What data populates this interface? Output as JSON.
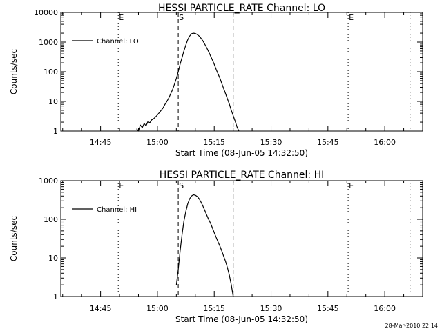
{
  "chart_data": [
    {
      "type": "line",
      "title": "HESSI PARTICLE_RATE Channel: LO",
      "xlabel": "Start Time (08-Jun-05 14:32:50)",
      "ylabel": "Counts/sec",
      "yscale": "log",
      "ylim": [
        1,
        10000
      ],
      "yticks": [
        "1",
        "10",
        "100",
        "1000",
        "10000"
      ],
      "xlim": [
        "14:34:30",
        "16:10:00"
      ],
      "xticks": [
        "14:45",
        "15:00",
        "15:15",
        "15:30",
        "15:45",
        "16:00"
      ],
      "grid": false,
      "legend": {
        "placement": "top-left",
        "entries": [
          "Channel: LO"
        ]
      },
      "markers": [
        {
          "time": "14:49:40",
          "style": "dotted",
          "label": "E"
        },
        {
          "time": "15:05:30",
          "style": "dashed",
          "label": "S"
        },
        {
          "time": "15:20:00",
          "style": "dashed",
          "label": ""
        },
        {
          "time": "15:50:20",
          "style": "dotted",
          "label": "E"
        },
        {
          "time": "16:06:40",
          "style": "dotted",
          "label": ""
        }
      ],
      "series": [
        {
          "name": "Channel: LO",
          "x": [
            "14:54:30",
            "14:55:00",
            "14:55:30",
            "14:56:00",
            "14:56:30",
            "14:57:00",
            "14:57:30",
            "14:58:00",
            "14:58:30",
            "14:59:00",
            "14:59:30",
            "15:00:00",
            "15:00:30",
            "15:01:00",
            "15:01:30",
            "15:02:00",
            "15:02:30",
            "15:03:00",
            "15:03:30",
            "15:04:00",
            "15:04:30",
            "15:05:00",
            "15:05:30",
            "15:06:00",
            "15:06:30",
            "15:07:00",
            "15:07:30",
            "15:08:00",
            "15:08:30",
            "15:09:00",
            "15:09:30",
            "15:10:00",
            "15:10:30",
            "15:11:00",
            "15:11:30",
            "15:12:00",
            "15:12:30",
            "15:13:00",
            "15:13:30",
            "15:14:00",
            "15:14:30",
            "15:15:00",
            "15:15:30",
            "15:16:00",
            "15:16:30",
            "15:17:00",
            "15:17:30",
            "15:18:00",
            "15:18:30",
            "15:19:00",
            "15:19:30",
            "15:20:00",
            "15:20:30",
            "15:21:00",
            "15:21:30"
          ],
          "y": [
            1.2,
            1,
            1.6,
            1.3,
            1.8,
            1.5,
            2.1,
            1.9,
            2.4,
            2.6,
            3.0,
            3.5,
            4.2,
            5.0,
            6.0,
            8.0,
            10,
            13,
            18,
            25,
            38,
            60,
            100,
            180,
            300,
            500,
            800,
            1200,
            1600,
            1900,
            2000,
            1950,
            1800,
            1600,
            1350,
            1100,
            850,
            650,
            480,
            350,
            250,
            180,
            120,
            85,
            60,
            40,
            27,
            18,
            12,
            8,
            5,
            3.3,
            2.2,
            1.4,
            1
          ]
        }
      ]
    },
    {
      "type": "line",
      "title": "HESSI PARTICLE_RATE Channel: HI",
      "xlabel": "Start Time (08-Jun-05 14:32:50)",
      "ylabel": "Counts/sec",
      "yscale": "log",
      "ylim": [
        1,
        1000
      ],
      "yticks": [
        "1",
        "10",
        "100",
        "1000"
      ],
      "xlim": [
        "14:34:30",
        "16:10:00"
      ],
      "xticks": [
        "14:45",
        "15:00",
        "15:15",
        "15:30",
        "15:45",
        "16:00"
      ],
      "grid": false,
      "legend": {
        "placement": "top-left",
        "entries": [
          "Channel: HI"
        ]
      },
      "markers": [
        {
          "time": "14:49:40",
          "style": "dotted",
          "label": "E"
        },
        {
          "time": "15:05:30",
          "style": "dashed",
          "label": "S"
        },
        {
          "time": "15:20:00",
          "style": "dashed",
          "label": ""
        },
        {
          "time": "15:50:20",
          "style": "dotted",
          "label": "E"
        },
        {
          "time": "16:06:40",
          "style": "dotted",
          "label": ""
        }
      ],
      "series": [
        {
          "name": "Channel: HI",
          "x": [
            "15:05:00",
            "15:05:30",
            "15:06:00",
            "15:06:30",
            "15:07:00",
            "15:07:30",
            "15:08:00",
            "15:08:30",
            "15:09:00",
            "15:09:30",
            "15:10:00",
            "15:10:30",
            "15:11:00",
            "15:11:30",
            "15:12:00",
            "15:12:30",
            "15:13:00",
            "15:13:30",
            "15:14:00",
            "15:14:30",
            "15:15:00",
            "15:15:30",
            "15:16:00",
            "15:16:30",
            "15:17:00",
            "15:17:30",
            "15:18:00",
            "15:18:30",
            "15:19:00",
            "15:19:30",
            "15:20:00"
          ],
          "y": [
            2,
            5,
            15,
            40,
            90,
            160,
            250,
            340,
            400,
            430,
            420,
            390,
            340,
            280,
            220,
            170,
            130,
            100,
            80,
            60,
            45,
            34,
            26,
            20,
            15,
            11,
            8,
            5.5,
            3.5,
            2,
            1
          ]
        }
      ]
    }
  ],
  "footer": {
    "timestamp": "28-Mar-2010 22:14"
  }
}
